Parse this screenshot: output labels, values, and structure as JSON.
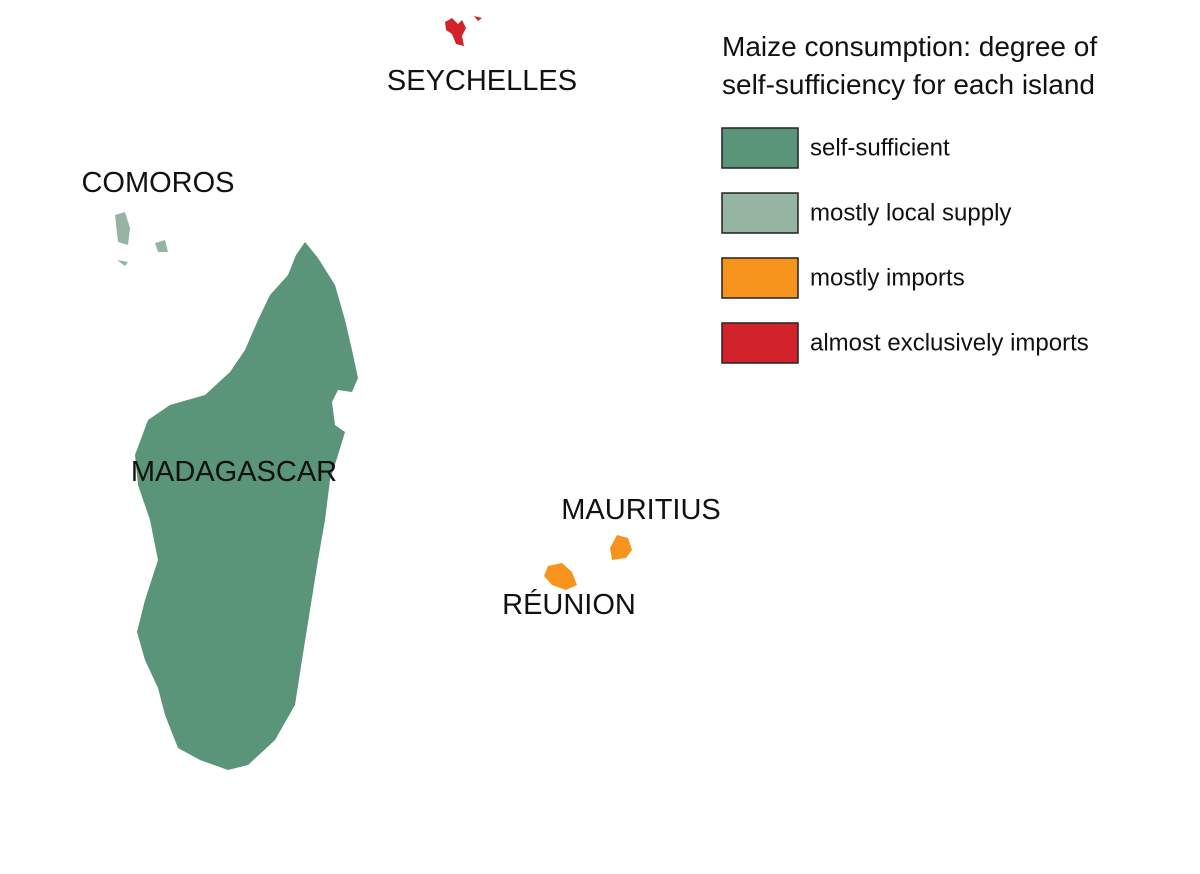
{
  "map": {
    "labels": {
      "seychelles": "SEYCHELLES",
      "comoros": "COMOROS",
      "madagascar": "MADAGASCAR",
      "mauritius": "MAURITIUS",
      "reunion": "RÉUNION"
    },
    "legend": {
      "title_lines": [
        "Maize consumption: degree of",
        "self-sufficiency for each island"
      ],
      "items": [
        {
          "label": "self-sufficient",
          "color": "#5a9479"
        },
        {
          "label": "mostly local supply",
          "color": "#96b4a2"
        },
        {
          "label": "mostly imports",
          "color": "#f7941d"
        },
        {
          "label": "almost exclusively imports",
          "color": "#d2232a"
        }
      ]
    }
  }
}
